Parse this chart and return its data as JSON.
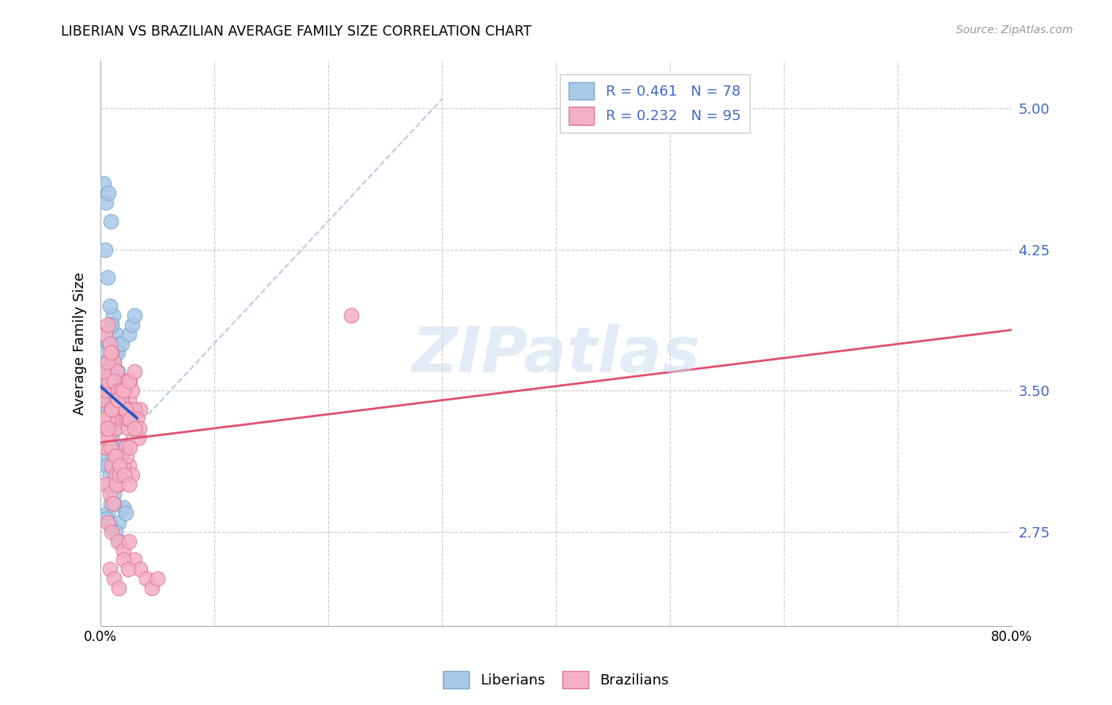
{
  "title": "LIBERIAN VS BRAZILIAN AVERAGE FAMILY SIZE CORRELATION CHART",
  "source": "Source: ZipAtlas.com",
  "ylabel": "Average Family Size",
  "xlim": [
    0.0,
    80.0
  ],
  "ylim": [
    2.25,
    5.25
  ],
  "yticks": [
    2.75,
    3.5,
    4.25,
    5.0
  ],
  "ytick_labels": [
    "2.75",
    "3.50",
    "4.25",
    "5.00"
  ],
  "xticks": [
    0.0,
    10.0,
    20.0,
    30.0,
    40.0,
    50.0,
    60.0,
    70.0,
    80.0
  ],
  "xtick_labels": [
    "0.0%",
    "",
    "",
    "",
    "",
    "",
    "",
    "",
    "80.0%"
  ],
  "ytick_color": "#4169c8",
  "liberian_color": "#aac8e8",
  "liberian_edge": "#7aaad0",
  "brazilian_color": "#f4b0c4",
  "brazilian_edge": "#e07898",
  "liberian_line_color": "#2255cc",
  "brazilian_line_color": "#e05070",
  "diagonal_color": "#b8cce8",
  "R_liberian": "0.461",
  "N_liberian": "78",
  "R_brazilian": "0.232",
  "N_brazilian": "95",
  "legend_liberian": "Liberians",
  "legend_brazilian": "Brazilians",
  "watermark": "ZIPatlas",
  "liberian_x": [
    0.2,
    0.3,
    0.4,
    0.5,
    0.6,
    0.8,
    1.0,
    1.2,
    1.4,
    1.6,
    0.3,
    0.5,
    0.7,
    0.9,
    1.1,
    0.4,
    0.6,
    0.8,
    1.0,
    1.3,
    0.2,
    0.4,
    0.6,
    0.8,
    1.0,
    1.2,
    1.5,
    1.8,
    2.0,
    2.2,
    0.3,
    0.5,
    0.7,
    1.0,
    1.3,
    0.2,
    0.4,
    0.6,
    0.9,
    1.1,
    0.3,
    0.5,
    0.8,
    1.2,
    0.4,
    0.7,
    1.0,
    0.3,
    0.6,
    0.9,
    1.4,
    0.5,
    0.8,
    1.1,
    0.2,
    0.4,
    0.7,
    1.0,
    1.5,
    1.9,
    2.5,
    2.8,
    3.0,
    0.6,
    0.9,
    1.2,
    1.6,
    2.0,
    0.4,
    0.8,
    1.2,
    1.6,
    2.1,
    0.5,
    0.9,
    1.3,
    1.7,
    2.2
  ],
  "liberian_y": [
    3.5,
    3.45,
    3.55,
    3.4,
    3.6,
    3.35,
    3.7,
    3.65,
    3.8,
    3.75,
    4.6,
    4.5,
    4.55,
    4.4,
    3.9,
    4.25,
    4.1,
    3.95,
    3.85,
    3.7,
    3.3,
    3.25,
    3.4,
    3.35,
    3.5,
    3.45,
    3.6,
    3.55,
    3.4,
    3.35,
    3.2,
    3.15,
    3.1,
    3.25,
    3.3,
    3.45,
    3.4,
    3.5,
    3.35,
    3.55,
    3.7,
    3.65,
    3.6,
    3.55,
    3.8,
    3.75,
    3.85,
    3.3,
    3.4,
    3.2,
    3.45,
    3.1,
    3.05,
    3.15,
    3.5,
    3.55,
    3.6,
    3.65,
    3.7,
    3.75,
    3.8,
    3.85,
    3.9,
    2.85,
    2.9,
    2.95,
    2.8,
    2.88,
    3.3,
    3.0,
    2.9,
    3.1,
    3.2,
    2.82,
    2.78,
    2.75,
    2.7,
    2.85
  ],
  "brazilian_x": [
    0.3,
    0.5,
    0.7,
    0.9,
    1.1,
    1.3,
    1.5,
    1.7,
    1.9,
    2.1,
    2.3,
    2.5,
    2.7,
    2.9,
    3.1,
    3.3,
    3.5,
    0.4,
    0.6,
    0.8,
    1.0,
    1.2,
    1.4,
    1.6,
    1.8,
    2.0,
    2.2,
    2.4,
    2.6,
    2.8,
    3.0,
    3.2,
    3.4,
    0.3,
    0.6,
    0.9,
    1.2,
    1.5,
    1.8,
    2.1,
    2.4,
    0.4,
    0.7,
    1.0,
    1.3,
    1.6,
    1.9,
    2.2,
    2.5,
    2.8,
    0.5,
    0.8,
    1.1,
    1.4,
    1.7,
    2.0,
    2.3,
    2.6,
    0.4,
    0.7,
    1.0,
    1.4,
    1.8,
    2.2,
    2.6,
    3.0,
    0.5,
    0.9,
    1.3,
    1.7,
    2.1,
    2.5,
    0.6,
    1.0,
    1.5,
    2.0,
    2.5,
    3.0,
    3.5,
    4.0,
    4.5,
    5.0,
    22.0,
    0.3,
    0.6,
    1.0,
    1.5,
    2.0,
    2.5,
    3.0,
    0.8,
    1.2,
    1.6,
    2.0,
    2.4
  ],
  "brazilian_y": [
    3.45,
    3.5,
    3.55,
    3.4,
    3.35,
    3.3,
    3.45,
    3.4,
    3.35,
    3.5,
    3.55,
    3.45,
    3.4,
    3.35,
    3.3,
    3.25,
    3.4,
    3.8,
    3.85,
    3.75,
    3.7,
    3.65,
    3.6,
    3.5,
    3.45,
    3.4,
    3.35,
    3.3,
    3.55,
    3.5,
    3.4,
    3.35,
    3.3,
    3.6,
    3.65,
    3.7,
    3.55,
    3.5,
    3.45,
    3.4,
    3.35,
    3.2,
    3.25,
    3.1,
    3.05,
    3.0,
    3.15,
    3.2,
    3.1,
    3.05,
    3.0,
    2.95,
    2.9,
    3.0,
    3.05,
    3.1,
    3.15,
    3.2,
    3.3,
    3.35,
    3.4,
    3.45,
    3.5,
    3.4,
    3.35,
    3.3,
    3.25,
    3.2,
    3.15,
    3.1,
    3.05,
    3.0,
    2.8,
    2.75,
    2.7,
    2.65,
    2.7,
    2.6,
    2.55,
    2.5,
    2.45,
    2.5,
    3.9,
    3.35,
    3.3,
    3.4,
    3.45,
    3.5,
    3.55,
    3.6,
    2.55,
    2.5,
    2.45,
    2.6,
    2.55
  ]
}
